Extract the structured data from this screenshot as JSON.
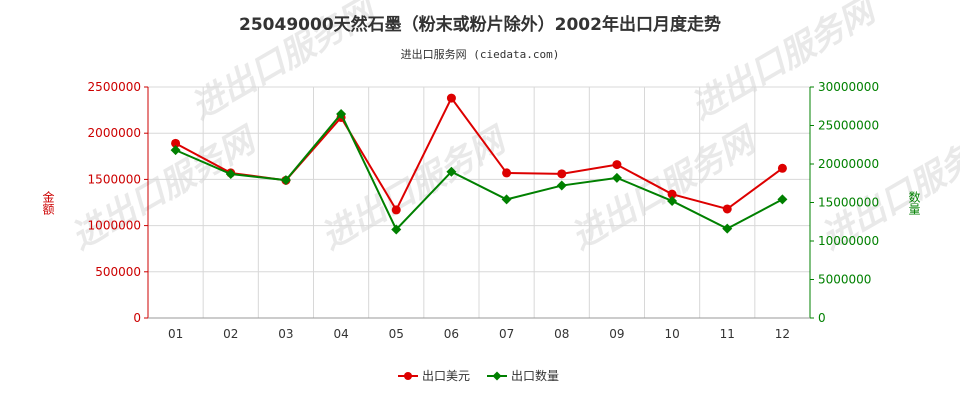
{
  "chart_data": {
    "type": "line",
    "title": "25049000天然石墨（粉末或粉片除外）2002年出口月度走势",
    "subtitle": "进出口服务网 (ciedata.com)",
    "categories": [
      "01",
      "02",
      "03",
      "04",
      "05",
      "06",
      "07",
      "08",
      "09",
      "10",
      "11",
      "12"
    ],
    "ylabel_left": "金额",
    "ylabel_right": "数量",
    "ylim_left": [
      0,
      2500000
    ],
    "ylim_right": [
      0,
      30000000
    ],
    "yticks_left": [
      "0",
      "500000",
      "1000000",
      "1500000",
      "2000000",
      "2500000"
    ],
    "yticks_right": [
      "0",
      "5000000",
      "10000000",
      "15000000",
      "20000000",
      "25000000",
      "30000000"
    ],
    "grid": true,
    "legend_position": "bottom",
    "series": [
      {
        "name": "出口美元",
        "axis": "left",
        "color": "#dd0000",
        "values": [
          1890000,
          1570000,
          1490000,
          2170000,
          1170000,
          2380000,
          1570000,
          1560000,
          1660000,
          1340000,
          1180000,
          1620000
        ]
      },
      {
        "name": "出口数量",
        "axis": "right",
        "color": "#008000",
        "values": [
          21800000,
          18700000,
          17900000,
          26500000,
          11500000,
          19000000,
          15400000,
          17200000,
          18200000,
          15200000,
          11600000,
          15400000
        ]
      }
    ],
    "watermark": "进出口服务网"
  }
}
